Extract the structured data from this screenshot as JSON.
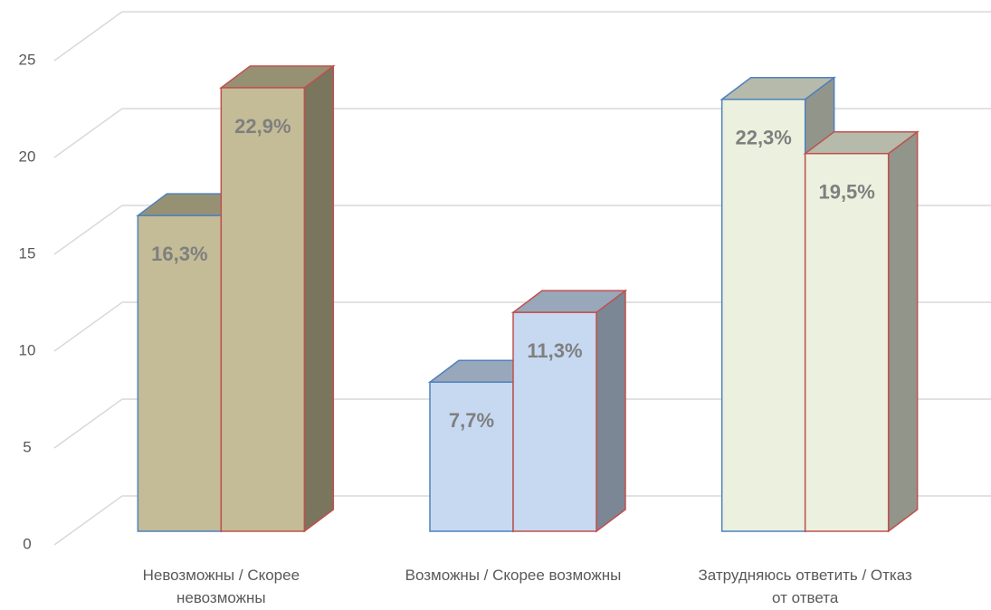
{
  "chart_data": {
    "type": "bar3d",
    "categories": [
      "Невозможны / Скорее невозможны",
      "Возможны / Скорее возможны",
      "Затрудняюсь ответить / Отказ от ответа"
    ],
    "category_colors": [
      "#c4bc96",
      "#c6d9f1",
      "#ebf1de"
    ],
    "series": [
      {
        "color": "#4f81bd",
        "values": [
          16.3,
          7.7,
          22.3
        ],
        "value_labels": [
          "16,3%",
          "7,7%",
          "22,3%"
        ]
      },
      {
        "color": "#c0504d",
        "values": [
          22.9,
          11.3,
          19.5
        ],
        "value_labels": [
          "22,9%",
          "11,3%",
          "19,5%"
        ]
      }
    ],
    "ylim": [
      0,
      25
    ],
    "yticks": [
      0,
      5,
      10,
      15,
      20,
      25
    ],
    "grid": true
  }
}
